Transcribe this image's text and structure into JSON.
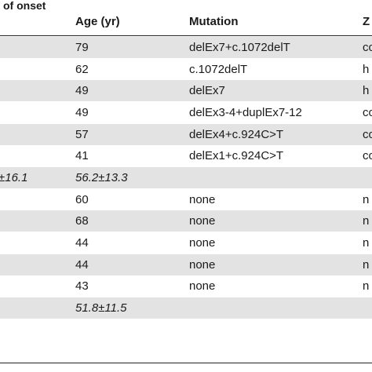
{
  "header": {
    "onset_label": "of onset",
    "age_label": "Age (yr)",
    "mutation_label": "Mutation",
    "z_label": "Z"
  },
  "rows": [
    {
      "onset": "",
      "age": "79",
      "mutation": "delEx7+c.1072delT",
      "z": "co",
      "shade": true,
      "italic": false
    },
    {
      "onset": "",
      "age": "62",
      "mutation": "c.1072delT",
      "z": "h",
      "shade": false,
      "italic": false
    },
    {
      "onset": "",
      "age": "49",
      "mutation": "delEx7",
      "z": "h",
      "shade": true,
      "italic": false
    },
    {
      "onset": "",
      "age": "49",
      "mutation": "delEx3-4+duplEx7-12",
      "z": "co",
      "shade": false,
      "italic": false
    },
    {
      "onset": "",
      "age": "57",
      "mutation": "delEx4+c.924C>T",
      "z": "co",
      "shade": true,
      "italic": false
    },
    {
      "onset": "",
      "age": "41",
      "mutation": "delEx1+c.924C>T",
      "z": "co",
      "shade": false,
      "italic": false
    },
    {
      "onset": "±16.1",
      "age": "56.2±13.3",
      "mutation": "",
      "z": "",
      "shade": true,
      "italic": true
    },
    {
      "onset": "",
      "age": "60",
      "mutation": "none",
      "z": "n",
      "shade": false,
      "italic": false
    },
    {
      "onset": "",
      "age": "68",
      "mutation": "none",
      "z": "n",
      "shade": true,
      "italic": false
    },
    {
      "onset": "",
      "age": "44",
      "mutation": "none",
      "z": "n",
      "shade": false,
      "italic": false
    },
    {
      "onset": "",
      "age": "44",
      "mutation": "none",
      "z": "n",
      "shade": true,
      "italic": false
    },
    {
      "onset": "",
      "age": "43",
      "mutation": "none",
      "z": "n",
      "shade": false,
      "italic": false
    },
    {
      "onset": "",
      "age": "51.8±11.5",
      "mutation": "",
      "z": "",
      "shade": true,
      "italic": true
    }
  ]
}
